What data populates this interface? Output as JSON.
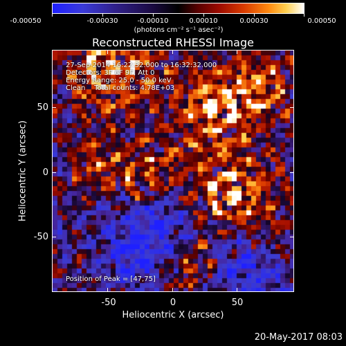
{
  "colorbar": {
    "tick_labels": [
      "-0.00050",
      "-0.00030",
      "-0.00010",
      "0.00010",
      "0.00030",
      "0.00050"
    ],
    "unit_label": "(photons cm⁻² s⁻¹ asec⁻²)",
    "colors": [
      "#1f20ff",
      "#30208a",
      "#000000",
      "#9a0a00",
      "#ff8a10",
      "#ffffff"
    ]
  },
  "image": {
    "title": "Reconstructed RHESSI Image",
    "info": {
      "time": "27-Sep-2014 16:22:32.000 to 16:32:32.000",
      "detectors": "Detectors: 3F 6F 9F, Att 0",
      "energy": "Energy Range: 25.0 - 50.0 keV",
      "clean": "Clean    Total counts: 4.78E+03"
    },
    "peak_label": "Position of Peak = [47,75]"
  },
  "axes": {
    "xlabel": "Heliocentric X (arcsec)",
    "ylabel": "Heliocentric Y (arcsec)",
    "x_ticks": [
      "-50",
      "0",
      "50"
    ],
    "y_ticks": [
      "50",
      "0",
      "-50"
    ],
    "xlim": [
      -92,
      92
    ],
    "ylim": [
      -92,
      92
    ]
  },
  "footer": {
    "timestamp": "20-May-2017 08:03"
  }
}
